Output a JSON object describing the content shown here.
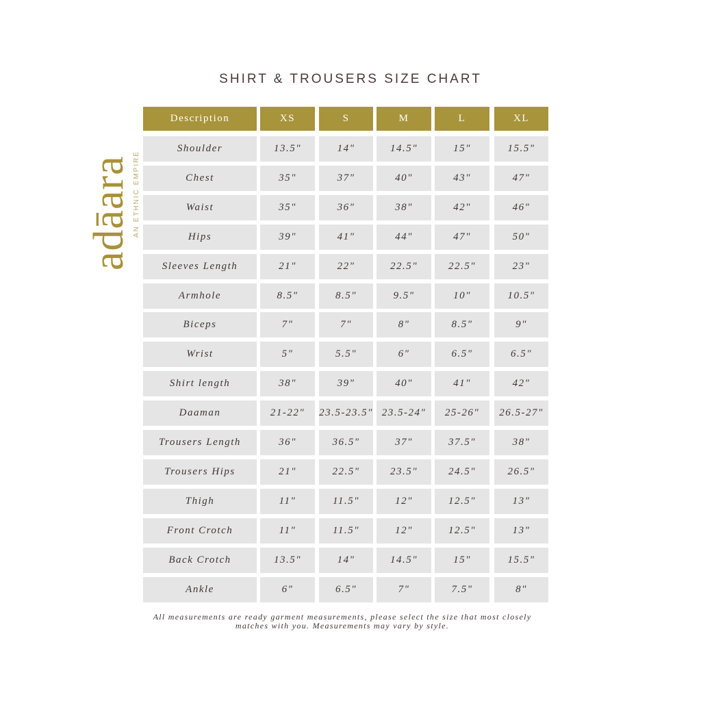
{
  "title": "SHIRT & TROUSERS SIZE CHART",
  "logo": {
    "word": "adāara",
    "tagline": "AN ETHNIC EMPIRE"
  },
  "colors": {
    "header": "#a8943a",
    "cell": "#e5e5e5",
    "text": "#3e3432",
    "logo": "#a8913a"
  },
  "table": {
    "headers": [
      "Description",
      "XS",
      "S",
      "M",
      "L",
      "XL"
    ],
    "rows": [
      [
        "Shoulder",
        "13.5\"",
        "14\"",
        "14.5\"",
        "15\"",
        "15.5\""
      ],
      [
        "Chest",
        "35\"",
        "37\"",
        "40\"",
        "43\"",
        "47\""
      ],
      [
        "Waist",
        "35\"",
        "36\"",
        "38\"",
        "42\"",
        "46\""
      ],
      [
        "Hips",
        "39\"",
        "41\"",
        "44\"",
        "47\"",
        "50\""
      ],
      [
        "Sleeves Length",
        "21\"",
        "22\"",
        "22.5\"",
        "22.5\"",
        "23\""
      ],
      [
        "Armhole",
        "8.5\"",
        "8.5\"",
        "9.5\"",
        "10\"",
        "10.5\""
      ],
      [
        "Biceps",
        "7\"",
        "7\"",
        "8\"",
        "8.5\"",
        "9\""
      ],
      [
        "Wrist",
        "5\"",
        "5.5\"",
        "6\"",
        "6.5\"",
        "6.5\""
      ],
      [
        "Shirt length",
        "38\"",
        "39\"",
        "40\"",
        "41\"",
        "42\""
      ],
      [
        "Daaman",
        "21-22\"",
        "23.5-23.5\"",
        "23.5-24\"",
        "25-26\"",
        "26.5-27\""
      ],
      [
        "Trousers Length",
        "36\"",
        "36.5\"",
        "37\"",
        "37.5\"",
        "38\""
      ],
      [
        "Trousers Hips",
        "21\"",
        "22.5\"",
        "23.5\"",
        "24.5\"",
        "26.5\""
      ],
      [
        "Thigh",
        "11\"",
        "11.5\"",
        "12\"",
        "12.5\"",
        "13\""
      ],
      [
        "Front Crotch",
        "11\"",
        "11.5\"",
        "12\"",
        "12.5\"",
        "13\""
      ],
      [
        "Back Crotch",
        "13.5\"",
        "14\"",
        "14.5\"",
        "15\"",
        "15.5\""
      ],
      [
        "Ankle",
        "6\"",
        "6.5\"",
        "7\"",
        "7.5\"",
        "8\""
      ]
    ]
  },
  "note": "All measurements are ready garment measurements, please select the size that most closely matches with you. Measurements may vary by style."
}
